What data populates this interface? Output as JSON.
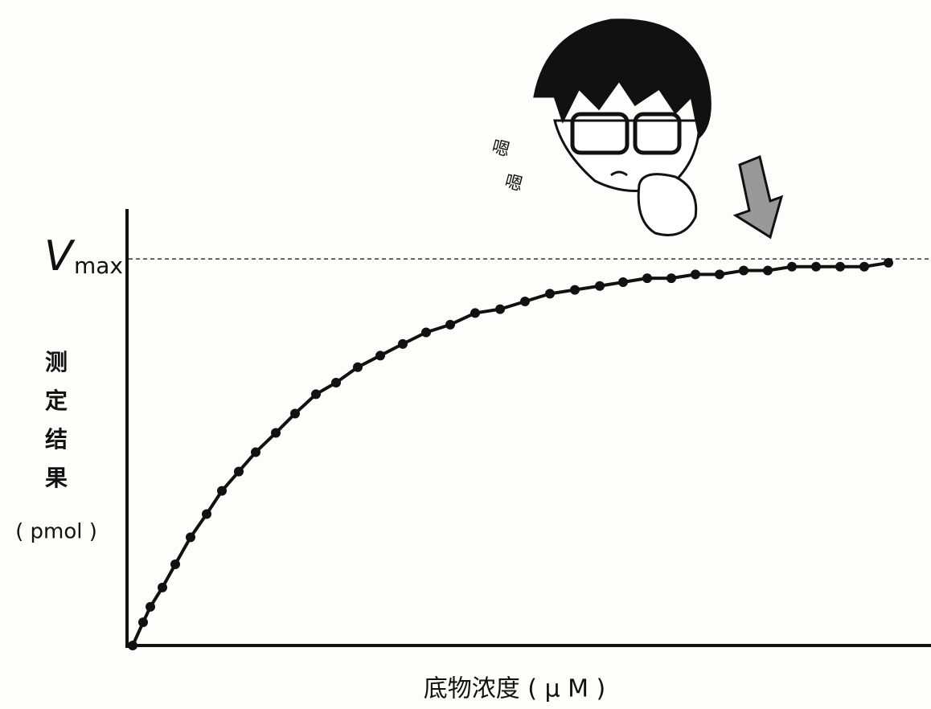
{
  "chart_data": {
    "type": "line",
    "vmax_label": {
      "main": "V",
      "sub": "max"
    },
    "vmax": 1,
    "y_label_lines": [
      "测",
      "定",
      "结",
      "果",
      "( pmol )"
    ],
    "x_label": "底物浓度 ( μ M )",
    "annotations": [
      "嗯",
      "嗯"
    ],
    "x": [
      0,
      1.3,
      2.2,
      3.7,
      5.3,
      7.2,
      9.2,
      11.1,
      13.2,
      15.3,
      17.8,
      20.2,
      22.8,
      25.3,
      28,
      30.8,
      33.6,
      36.5,
      39.5,
      42.6,
      45.7,
      48.8,
      51.9,
      55,
      58.1,
      61,
      64,
      67,
      70,
      73,
      76,
      79,
      82,
      85,
      88,
      91,
      94
    ],
    "series": [
      {
        "color": "#111111",
        "values": [
          0,
          0.06,
          0.1,
          0.15,
          0.21,
          0.28,
          0.34,
          0.4,
          0.45,
          0.5,
          0.55,
          0.6,
          0.65,
          0.68,
          0.72,
          0.75,
          0.78,
          0.81,
          0.83,
          0.86,
          0.87,
          0.89,
          0.91,
          0.92,
          0.93,
          0.94,
          0.95,
          0.95,
          0.96,
          0.96,
          0.97,
          0.97,
          0.98,
          0.98,
          0.98,
          0.98,
          0.99
        ]
      }
    ],
    "xlim": [
      0,
      99.3
    ],
    "ylim": [
      0,
      1.125
    ]
  }
}
